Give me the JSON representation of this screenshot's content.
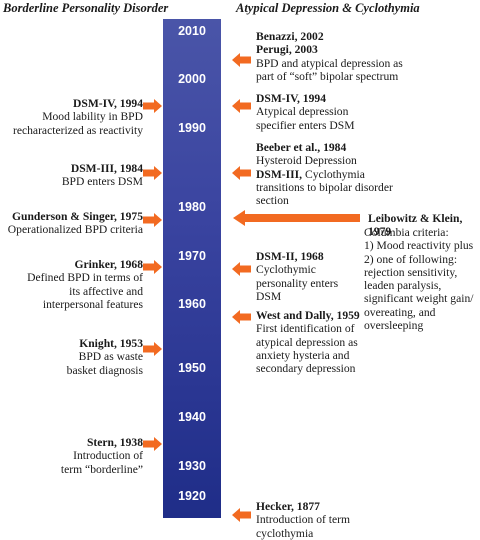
{
  "headers": {
    "left": "Borderline Personality Disorder",
    "right": "Atypical Depression & Cyclothymia"
  },
  "timeline": {
    "years": [
      "2010",
      "2000",
      "1990",
      "1980",
      "1970",
      "1960",
      "1950",
      "1940",
      "1930",
      "1920"
    ],
    "accent_color": "#f26a21",
    "bar_color": "#2f3a97"
  },
  "left_entries": [
    {
      "title": "DSM-IV, 1994",
      "lines": [
        "Mood lability in BPD",
        "recharacterized as reactivity"
      ]
    },
    {
      "title": "DSM-III, 1984",
      "lines": [
        "BPD enters DSM"
      ]
    },
    {
      "title": "Gunderson & Singer, 1975",
      "lines": [
        "Operationalized BPD criteria"
      ]
    },
    {
      "title": "Grinker, 1968",
      "lines": [
        "Defined BPD in terms of",
        "its affective and",
        "interpersonal features"
      ]
    },
    {
      "title": "Knight, 1953",
      "lines": [
        "BPD as waste",
        "basket diagnosis"
      ]
    },
    {
      "title": "Stern, 1938",
      "lines": [
        "Introduction of",
        "term “borderline”"
      ]
    }
  ],
  "right_entries": [
    {
      "title": "Benazzi, 2002",
      "title2": "Perugi, 2003",
      "lines": [
        "BPD and atypical depression as",
        "part of “soft” bipolar spectrum"
      ]
    },
    {
      "title": "DSM-IV, 1994",
      "lines": [
        "Atypical depression",
        "specifier enters DSM"
      ]
    },
    {
      "title": "Beeber et al., 1984",
      "lines": [
        "Hysteroid Depression"
      ],
      "title2": "DSM-III,",
      "title2_suffix": " Cyclothymia",
      "lines2": [
        "transitions to bipolar disorder",
        "section"
      ]
    },
    {
      "title": "DSM-II, 1968",
      "lines": [
        "Cyclothymic",
        "personality enters",
        "DSM"
      ]
    },
    {
      "title": "West and Dally, 1959",
      "lines": [
        "First identification of",
        "atypical depression as",
        "anxiety hysteria and",
        "secondary depression"
      ]
    },
    {
      "title": "Hecker, 1877",
      "lines": [
        "Introduction of term",
        "cyclothymia"
      ]
    }
  ],
  "far_right_entry": {
    "title": "Leibowitz & Klein, 1979",
    "lines": [
      "Columbia criteria:",
      "1) Mood reactivity plus",
      "2) one of following:",
      "rejection sensitivity,",
      "leaden paralysis,",
      "significant weight gain/",
      "overeating, and",
      "oversleeping"
    ]
  }
}
